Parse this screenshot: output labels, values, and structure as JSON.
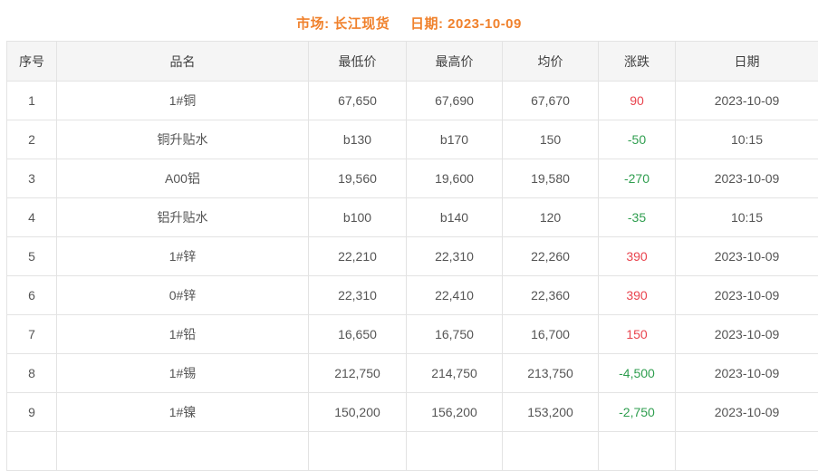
{
  "title": {
    "market_label": "市场:",
    "market_value": "长江现货",
    "date_label": "日期:",
    "date_value": "2023-10-09"
  },
  "colors": {
    "accent_orange": "#f0812c",
    "up_red": "#e9444e",
    "down_green": "#2f9e4f"
  },
  "table": {
    "columns": [
      "序号",
      "品名",
      "最低价",
      "最高价",
      "均价",
      "涨跌",
      "日期"
    ],
    "rows": [
      {
        "seq": "1",
        "name": "1#铜",
        "low": "67,650",
        "high": "67,690",
        "avg": "67,670",
        "change": "90",
        "direction": "up",
        "date": "2023-10-09"
      },
      {
        "seq": "2",
        "name": "铜升贴水",
        "low": "b130",
        "high": "b170",
        "avg": "150",
        "change": "-50",
        "direction": "down",
        "date": "10:15"
      },
      {
        "seq": "3",
        "name": "A00铝",
        "low": "19,560",
        "high": "19,600",
        "avg": "19,580",
        "change": "-270",
        "direction": "down",
        "date": "2023-10-09"
      },
      {
        "seq": "4",
        "name": "铝升贴水",
        "low": "b100",
        "high": "b140",
        "avg": "120",
        "change": "-35",
        "direction": "down",
        "date": "10:15"
      },
      {
        "seq": "5",
        "name": "1#锌",
        "low": "22,210",
        "high": "22,310",
        "avg": "22,260",
        "change": "390",
        "direction": "up",
        "date": "2023-10-09"
      },
      {
        "seq": "6",
        "name": "0#锌",
        "low": "22,310",
        "high": "22,410",
        "avg": "22,360",
        "change": "390",
        "direction": "up",
        "date": "2023-10-09"
      },
      {
        "seq": "7",
        "name": "1#铅",
        "low": "16,650",
        "high": "16,750",
        "avg": "16,700",
        "change": "150",
        "direction": "up",
        "date": "2023-10-09"
      },
      {
        "seq": "8",
        "name": "1#锡",
        "low": "212,750",
        "high": "214,750",
        "avg": "213,750",
        "change": "-4,500",
        "direction": "down",
        "date": "2023-10-09"
      },
      {
        "seq": "9",
        "name": "1#镍",
        "low": "150,200",
        "high": "156,200",
        "avg": "153,200",
        "change": "-2,750",
        "direction": "down",
        "date": "2023-10-09"
      }
    ]
  }
}
